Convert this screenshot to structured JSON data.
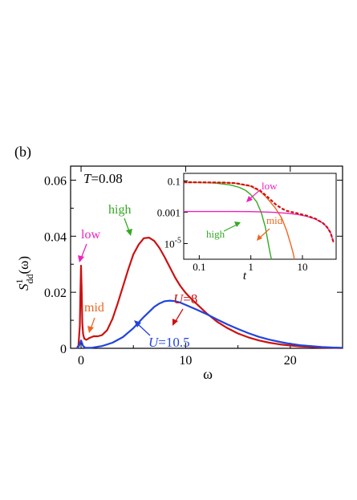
{
  "panel_label": "(b)",
  "colors": {
    "U8": "#cc1111",
    "U105": "#2244dd",
    "low": "#ee22bb",
    "mid": "#ee6622",
    "high": "#33aa22",
    "axis": "#000000"
  },
  "main": {
    "temperature": {
      "var": "T",
      "eq": "=0.08"
    },
    "ylabel": {
      "sym": "S",
      "sup": "1",
      "sub": "dd",
      "arg": "(ω)"
    },
    "xlabel": "ω",
    "series_labels": {
      "u8": {
        "var": "U",
        "eq": "=8"
      },
      "u105": {
        "var": "U",
        "eq": "=10.5"
      }
    },
    "annotations": {
      "low": "low",
      "mid": "mid",
      "high": "high"
    }
  },
  "inset": {
    "xlabel": "t",
    "annotations": {
      "low": "low",
      "mid": "mid",
      "high": "high"
    },
    "x_ticks": [
      "0.1",
      "1",
      "10"
    ],
    "y_ticks": [
      {
        "base": "0.1",
        "exp": ""
      },
      {
        "base": "0.001",
        "exp": ""
      },
      {
        "base": "10",
        "exp": "-5"
      }
    ]
  },
  "chart_data": [
    {
      "type": "line",
      "xlabel": "ω",
      "ylabel": "S¹dd(ω)",
      "xlim": [
        -1,
        25
      ],
      "ylim": [
        0,
        0.065
      ],
      "x_ticks": [
        0,
        10,
        20
      ],
      "y_ticks": [
        0,
        0.02,
        0.04,
        0.06
      ],
      "y_tick_labels": [
        "0",
        "0.02",
        "0.04",
        "0.06"
      ],
      "x_tick_labels": [
        "0",
        "10",
        "20"
      ],
      "grid": false,
      "series": [
        {
          "name": "U=8",
          "x": [
            -0.4,
            -0.25,
            -0.12,
            -0.05,
            0.0,
            0.05,
            0.12,
            0.2,
            0.3,
            0.5,
            0.8,
            1.2,
            1.6,
            2.0,
            2.5,
            3.0,
            3.5,
            4.0,
            4.5,
            5.0,
            5.5,
            6.0,
            6.5,
            7.0,
            7.5,
            8.0,
            8.5,
            9.0,
            9.5,
            10.0,
            10.5,
            11.0,
            12.0,
            13.0,
            14.0,
            15.0,
            16.0,
            17.0,
            18.0,
            19.0,
            20.0,
            21.0,
            22.0,
            23.0,
            24.0,
            25.0
          ],
          "y": [
            0.0,
            0.001,
            0.008,
            0.022,
            0.0295,
            0.022,
            0.009,
            0.005,
            0.0035,
            0.003,
            0.0037,
            0.0043,
            0.0043,
            0.0047,
            0.0065,
            0.0105,
            0.016,
            0.022,
            0.028,
            0.0335,
            0.037,
            0.0393,
            0.0395,
            0.0383,
            0.0358,
            0.0325,
            0.0288,
            0.0252,
            0.0222,
            0.0198,
            0.0178,
            0.016,
            0.0125,
            0.0095,
            0.0072,
            0.0053,
            0.0039,
            0.0028,
            0.002,
            0.0014,
            0.001,
            0.0007,
            0.0005,
            0.0003,
            0.0002,
            0.0001
          ]
        },
        {
          "name": "U=10.5",
          "x": [
            -0.4,
            -0.2,
            -0.08,
            0.0,
            0.08,
            0.2,
            0.4,
            1.0,
            2.0,
            3.0,
            4.0,
            5.0,
            6.0,
            7.0,
            7.5,
            8.0,
            8.5,
            9.0,
            9.5,
            10.0,
            11.0,
            12.0,
            13.0,
            14.0,
            15.0,
            16.0,
            17.0,
            18.0,
            19.0,
            20.0,
            21.0,
            22.0,
            23.0,
            24.0,
            25.0
          ],
          "y": [
            0.0,
            0.0008,
            0.002,
            0.0028,
            0.002,
            0.0008,
            0.0002,
            0.0002,
            0.0008,
            0.002,
            0.004,
            0.0072,
            0.0112,
            0.0148,
            0.016,
            0.0168,
            0.017,
            0.0168,
            0.0163,
            0.0155,
            0.0139,
            0.0122,
            0.0103,
            0.0085,
            0.0069,
            0.0054,
            0.0041,
            0.0031,
            0.0023,
            0.0016,
            0.0011,
            0.0008,
            0.0005,
            0.0003,
            0.0002
          ]
        }
      ]
    },
    {
      "type": "line",
      "xlabel": "t",
      "xscale": "log",
      "yscale": "log",
      "xlim": [
        0.05,
        45
      ],
      "ylim": [
        1e-06,
        0.3
      ],
      "x_ticks": [
        0.1,
        1,
        10
      ],
      "y_ticks": [
        0.1,
        0.001,
        1e-05
      ],
      "grid": false,
      "series": [
        {
          "name": "high",
          "x": [
            0.05,
            0.1,
            0.2,
            0.4,
            0.6,
            0.8,
            1.0,
            1.3,
            1.6,
            1.9,
            2.1,
            2.3,
            2.5
          ],
          "y": [
            0.079,
            0.078,
            0.072,
            0.055,
            0.038,
            0.024,
            0.013,
            0.0045,
            0.0009,
            0.00012,
            2e-05,
            4e-06,
            1e-06
          ]
        },
        {
          "name": "mid",
          "x": [
            0.05,
            0.1,
            0.3,
            0.5,
            1.0,
            1.5,
            2.0,
            3.0,
            4.0,
            5.0,
            6.0,
            6.5,
            7.0
          ],
          "y": [
            0.08,
            0.079,
            0.076,
            0.07,
            0.045,
            0.022,
            0.009,
            0.0018,
            0.0004,
            6e-05,
            8e-06,
            3e-06,
            1e-06
          ]
        },
        {
          "name": "low",
          "x": [
            0.05,
            0.1,
            0.5,
            1.0,
            2.0,
            3.0,
            5.0,
            8.0,
            12.0,
            18.0,
            25.0,
            30.0,
            35.0,
            40.0
          ],
          "y": [
            0.0011,
            0.0011,
            0.0011,
            0.00108,
            0.00102,
            0.00096,
            0.00086,
            0.00072,
            0.00055,
            0.00036,
            0.0002,
            0.00011,
            5e-05,
            1.2e-05
          ]
        },
        {
          "name": "U=8 (total)",
          "x": [
            0.05,
            0.1,
            0.3,
            0.5,
            1.0,
            1.5,
            2.0,
            3.0,
            4.0,
            5.0,
            8.0,
            12.0,
            18.0,
            25.0,
            30.0,
            35.0,
            40.0
          ],
          "y": [
            0.081,
            0.08,
            0.077,
            0.071,
            0.047,
            0.024,
            0.011,
            0.0032,
            0.0017,
            0.0012,
            0.00085,
            0.0006,
            0.00038,
            0.0002,
            0.00011,
            5e-05,
            1.2e-05
          ]
        }
      ]
    }
  ]
}
